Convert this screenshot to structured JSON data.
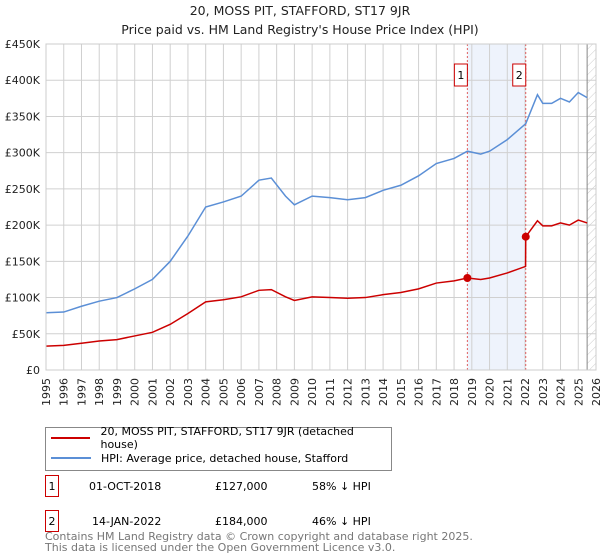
{
  "title": "20, MOSS PIT, STAFFORD, ST17 9JR",
  "subtitle": "Price paid vs. HM Land Registry's House Price Index (HPI)",
  "chart_data": {
    "type": "line",
    "title": "20, MOSS PIT, STAFFORD, ST17 9JR",
    "subtitle": "Price paid vs. HM Land Registry's House Price Index (HPI)",
    "xlim": [
      1995,
      2026
    ],
    "ylim": [
      0,
      450000
    ],
    "xticks": [
      "1995",
      "1996",
      "1997",
      "1998",
      "1999",
      "2000",
      "2001",
      "2002",
      "2003",
      "2004",
      "2005",
      "2006",
      "2007",
      "2008",
      "2009",
      "2010",
      "2011",
      "2012",
      "2013",
      "2014",
      "2015",
      "2016",
      "2017",
      "2018",
      "2019",
      "2020",
      "2021",
      "2022",
      "2023",
      "2024",
      "2025",
      "2026"
    ],
    "yticks": [
      {
        "v": 0,
        "label": "£0"
      },
      {
        "v": 50000,
        "label": "£50K"
      },
      {
        "v": 100000,
        "label": "£100K"
      },
      {
        "v": 150000,
        "label": "£150K"
      },
      {
        "v": 200000,
        "label": "£200K"
      },
      {
        "v": 250000,
        "label": "£250K"
      },
      {
        "v": 300000,
        "label": "£300K"
      },
      {
        "v": 350000,
        "label": "£350K"
      },
      {
        "v": 400000,
        "label": "£400K"
      },
      {
        "v": 450000,
        "label": "£450K"
      }
    ],
    "grid": true,
    "series": [
      {
        "name": "HPI: Average price, detached house, Stafford",
        "color": "#5b8fd6",
        "x": [
          1995,
          1996,
          1997,
          1998,
          1999,
          2000,
          2001,
          2002,
          2003,
          2004,
          2005,
          2006,
          2007,
          2007.7,
          2008.5,
          2009,
          2010,
          2011,
          2012,
          2013,
          2014,
          2015,
          2016,
          2017,
          2018,
          2018.75,
          2019.5,
          2020,
          2021,
          2022.04,
          2022.7,
          2023,
          2023.5,
          2024,
          2024.5,
          2025,
          2025.5
        ],
        "y": [
          79000,
          80000,
          88000,
          95000,
          100000,
          112000,
          125000,
          150000,
          185000,
          225000,
          232000,
          240000,
          262000,
          265000,
          240000,
          228000,
          240000,
          238000,
          235000,
          238000,
          248000,
          255000,
          268000,
          285000,
          292000,
          302000,
          298000,
          302000,
          318000,
          340000,
          380000,
          368000,
          368000,
          375000,
          370000,
          383000,
          376000
        ]
      },
      {
        "name": "20, MOSS PIT, STAFFORD, ST17 9JR (detached house)",
        "color": "#cc0000",
        "x": [
          1995,
          1996,
          1997,
          1998,
          1999,
          2000,
          2001,
          2002,
          2003,
          2004,
          2005,
          2006,
          2007,
          2007.7,
          2008.5,
          2009,
          2010,
          2011,
          2012,
          2013,
          2014,
          2015,
          2016,
          2017,
          2018,
          2018.75,
          2019.5,
          2020,
          2021,
          2022.03,
          2022.04,
          2022.7,
          2023,
          2023.5,
          2024,
          2024.5,
          2025,
          2025.5
        ],
        "y": [
          33000,
          34000,
          37000,
          40000,
          42000,
          47000,
          52000,
          63000,
          78000,
          94000,
          97000,
          101000,
          110000,
          111000,
          101000,
          96000,
          101000,
          100000,
          99000,
          100000,
          104000,
          107000,
          112000,
          120000,
          123000,
          127000,
          125000,
          127000,
          134000,
          143000,
          184000,
          206000,
          199000,
          199000,
          203000,
          200000,
          207000,
          203000
        ]
      }
    ],
    "sales": [
      {
        "label": "1",
        "x": 2018.75,
        "price": 127000
      },
      {
        "label": "2",
        "x": 2022.04,
        "price": 184000
      }
    ],
    "shaded_range": [
      2018.75,
      2022.04
    ],
    "hatched_from": 2025.5
  },
  "legend": [
    {
      "label": "20, MOSS PIT, STAFFORD, ST17 9JR (detached house)",
      "color": "#cc0000"
    },
    {
      "label": "HPI: Average price, detached house, Stafford",
      "color": "#5b8fd6"
    }
  ],
  "transactions": [
    {
      "num": "1",
      "date": "01-OCT-2018",
      "price": "£127,000",
      "hpi": "58% ↓ HPI"
    },
    {
      "num": "2",
      "date": "14-JAN-2022",
      "price": "£184,000",
      "hpi": "46% ↓ HPI"
    }
  ],
  "footer": [
    "Contains HM Land Registry data © Crown copyright and database right 2025.",
    "This data is licensed under the Open Government Licence v3.0."
  ]
}
